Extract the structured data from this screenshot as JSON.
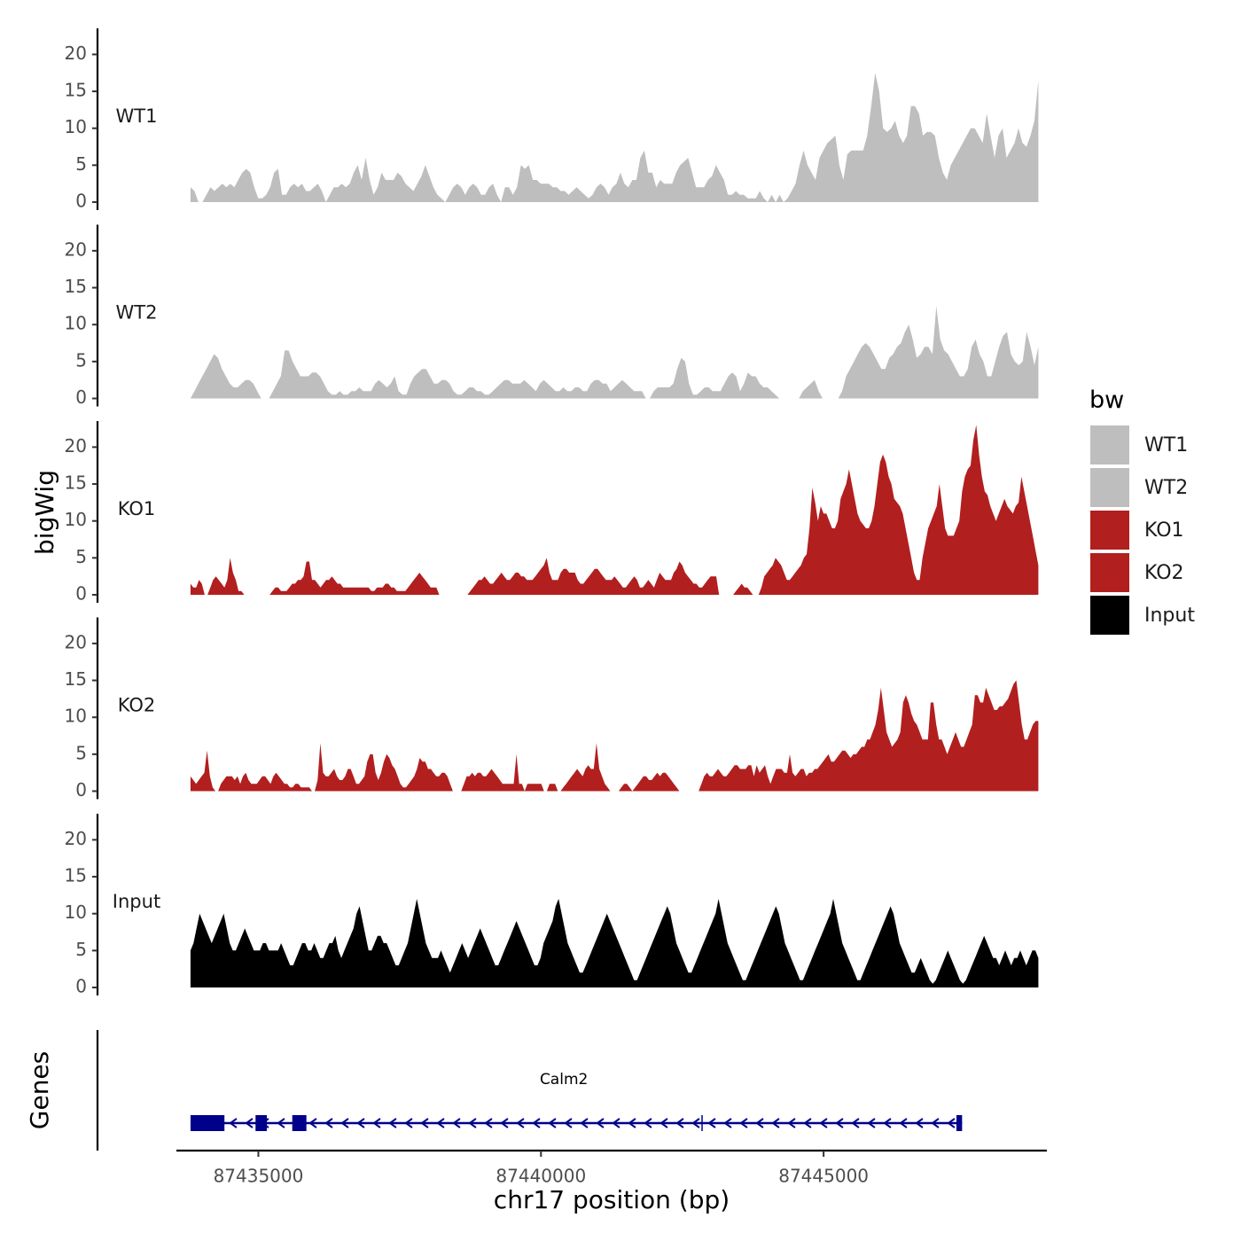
{
  "chart_data": {
    "type": "area",
    "title": "",
    "xlabel": "chr17 position (bp)",
    "ylabel": "bigWig",
    "genes_label": "Genes",
    "xlim": [
      87433550,
      87448950
    ],
    "ylim": [
      0,
      23.5
    ],
    "x_ticks": [
      87435000,
      87440000,
      87445000
    ],
    "x_tick_labels": [
      "87435000",
      "87440000",
      "87445000"
    ],
    "y_ticks": [
      0,
      5,
      10,
      15,
      20
    ],
    "y_tick_labels": [
      "0",
      "5",
      "10",
      "15",
      "20"
    ],
    "x_start": 87433800,
    "x_end": 87448800,
    "legend": {
      "title": "bw",
      "position": "right",
      "entries": [
        {
          "label": "WT1",
          "color": "#bebebe"
        },
        {
          "label": "WT2",
          "color": "#bebebe"
        },
        {
          "label": "KO1",
          "color": "#b21f1f"
        },
        {
          "label": "KO2",
          "color": "#b21f1f"
        },
        {
          "label": "Input",
          "color": "#000000"
        }
      ]
    },
    "series": [
      {
        "name": "WT1",
        "color": "#bebebe",
        "values": [
          2,
          1.5,
          0,
          0,
          1,
          2,
          1.5,
          2,
          2.5,
          2,
          2.5,
          2,
          3,
          4,
          4.5,
          4,
          2,
          0.5,
          0.5,
          1,
          2,
          4,
          4.5,
          1,
          1,
          2,
          2.5,
          2,
          2.5,
          1.5,
          1.5,
          2,
          2.5,
          1.5,
          0,
          1,
          2,
          2,
          2.5,
          2,
          2.5,
          4,
          5,
          3,
          6,
          3,
          1,
          2,
          4,
          3,
          3,
          3,
          4,
          3.5,
          2.5,
          2,
          1.5,
          2.5,
          3.5,
          5,
          3.5,
          2,
          1,
          0.5,
          0,
          1,
          2,
          2.5,
          2,
          1,
          2,
          2.5,
          2,
          1,
          1,
          2,
          2.5,
          1,
          0,
          2,
          2,
          1,
          2,
          5,
          4.5,
          5,
          3,
          3,
          2.5,
          2.5,
          2.5,
          2,
          2,
          1.5,
          1.5,
          1,
          1.5,
          2,
          1.5,
          1,
          0.5,
          1,
          2,
          2.5,
          2,
          1,
          2,
          2.5,
          4,
          2.5,
          2,
          3,
          3,
          6,
          7,
          4,
          4,
          2,
          3,
          2.5,
          2.5,
          2.5,
          4,
          5,
          5.5,
          6,
          4,
          2,
          2,
          2,
          3,
          3.5,
          5,
          4,
          3,
          1,
          1,
          1.5,
          1,
          1,
          0.5,
          0.5,
          0.5,
          1.5,
          0.5,
          0,
          1,
          0,
          1,
          0,
          0.5,
          1.5,
          2.5,
          5,
          7,
          5,
          4,
          3,
          6,
          7,
          8,
          8.5,
          9,
          5,
          3,
          6.5,
          7,
          7,
          7,
          7,
          9,
          13,
          17.5,
          15,
          10,
          9.5,
          10,
          11,
          9,
          8,
          9,
          13,
          13,
          12,
          9,
          9.5,
          9.5,
          9,
          6,
          4,
          3,
          5,
          6,
          7,
          8,
          9,
          10,
          10,
          9,
          8,
          12,
          9,
          6,
          9,
          10,
          6,
          7,
          8,
          10,
          8,
          7.5,
          9,
          11,
          16.5
        ]
      },
      {
        "name": "WT2",
        "color": "#bebebe",
        "values": [
          0,
          1,
          2,
          3,
          4,
          5,
          6,
          5.5,
          4,
          3,
          2,
          1.5,
          1.5,
          2,
          2.5,
          2.5,
          2,
          1,
          0,
          0,
          0,
          1,
          2,
          3,
          6.5,
          6.5,
          5,
          4,
          3,
          3,
          3,
          3.5,
          3.5,
          3,
          2,
          1,
          0.5,
          0.5,
          1,
          0.5,
          0.5,
          1,
          1,
          1.5,
          1,
          1,
          1,
          2,
          2.5,
          2,
          1.5,
          2,
          3,
          1,
          0.5,
          0.5,
          2,
          3,
          3.5,
          4,
          4,
          3,
          2,
          2,
          2.5,
          2.5,
          2,
          1,
          0.5,
          0.5,
          1,
          1.5,
          1.5,
          1,
          1,
          0.5,
          0.5,
          1,
          1.5,
          2,
          2.5,
          2.5,
          2,
          2,
          2,
          2.5,
          2,
          1.5,
          1,
          2,
          2.5,
          2,
          1.5,
          1,
          1,
          1.5,
          1,
          1,
          1.5,
          1.5,
          1,
          1,
          2,
          2.5,
          2.5,
          2,
          2,
          1,
          1.5,
          2,
          2.5,
          2,
          1.5,
          1,
          1,
          1,
          0,
          0,
          1,
          1.5,
          1.5,
          1.5,
          1.5,
          2,
          4,
          5.5,
          5,
          2,
          0.5,
          0.5,
          1,
          1.5,
          1.5,
          1,
          1,
          1,
          2,
          3,
          3.5,
          3,
          1,
          2,
          3.5,
          3,
          3,
          2,
          1.5,
          1.5,
          1,
          0.5,
          0,
          0,
          0,
          0,
          0,
          0,
          1,
          1.5,
          2,
          2.5,
          1,
          0,
          0,
          0,
          0,
          0,
          1,
          3,
          4,
          5,
          6,
          7,
          7.5,
          7,
          6,
          5,
          4,
          4,
          5.5,
          6,
          7,
          7.5,
          9,
          10,
          8,
          5.5,
          6,
          7,
          7,
          6,
          12.5,
          8,
          6.5,
          6,
          5,
          4,
          3,
          3,
          4,
          7,
          8,
          6,
          5,
          3,
          3,
          5,
          7,
          8.5,
          9,
          6,
          5,
          4.5,
          5,
          9,
          7,
          4.5,
          7
        ]
      },
      {
        "name": "KO1",
        "color": "#b21f1f",
        "values": [
          1.5,
          1,
          1,
          2,
          1.5,
          0,
          0,
          1,
          2,
          2.5,
          2,
          1.5,
          1,
          2,
          5,
          3,
          2,
          0.5,
          0.5,
          0,
          0,
          0,
          0,
          0,
          0,
          0,
          0,
          0,
          0,
          0.5,
          1,
          1,
          0.5,
          0.5,
          0.5,
          1,
          1.5,
          1.5,
          2,
          2,
          2.5,
          4.5,
          4.5,
          2,
          2,
          1.5,
          1,
          1.5,
          2,
          2,
          2.5,
          2,
          1.5,
          1.5,
          1,
          1,
          1,
          1,
          1,
          1,
          1,
          1,
          1,
          1,
          0.5,
          0.5,
          1,
          1,
          1,
          1.5,
          1.5,
          1,
          1,
          0.5,
          0.5,
          0.5,
          0.5,
          1,
          1.5,
          2,
          2.5,
          3,
          2.5,
          2,
          1.5,
          1,
          1,
          1,
          0,
          0,
          0,
          0,
          0,
          0,
          0,
          0,
          0,
          0,
          0,
          0.5,
          1,
          1.5,
          2,
          2,
          2.5,
          2,
          1.5,
          1.5,
          2,
          2.5,
          3,
          2.5,
          2,
          2,
          2.5,
          3,
          3,
          2.5,
          2.5,
          2,
          2,
          2,
          2.5,
          3,
          3.5,
          4,
          5,
          3,
          2,
          2,
          2,
          3,
          3.5,
          3.5,
          3,
          3,
          3,
          2,
          1.5,
          1.5,
          2,
          2.5,
          3,
          3.5,
          3.5,
          3,
          2.5,
          2,
          2,
          2,
          2.5,
          2,
          1.5,
          1,
          1,
          1.5,
          2,
          2.5,
          2,
          1,
          1,
          1.5,
          2,
          1.5,
          1,
          2,
          3,
          2.5,
          2,
          2,
          2,
          3,
          3.5,
          4.5,
          4,
          3,
          2.5,
          2,
          1.5,
          1.5,
          1,
          1,
          1.5,
          2,
          2.5,
          2.5,
          2.5,
          0,
          0,
          0,
          0,
          0,
          0,
          0.5,
          1,
          1.5,
          1,
          1,
          0.5,
          0,
          0,
          0,
          1,
          2.5,
          3,
          3.5,
          4,
          5,
          4.5,
          4,
          3,
          2,
          2,
          2.5,
          3,
          3.5,
          4,
          5,
          5.5,
          9,
          14.5,
          12.5,
          10,
          12,
          11,
          11,
          10,
          9,
          9,
          10,
          13,
          14,
          15,
          17,
          15,
          13,
          11,
          10,
          9.5,
          9,
          9,
          10,
          12,
          15,
          18,
          19,
          18,
          16,
          15,
          13,
          12.5,
          12,
          11,
          9,
          7,
          5,
          3,
          2,
          2,
          5,
          7,
          9,
          10,
          11,
          12,
          15,
          12,
          9,
          8,
          8,
          8,
          9,
          10,
          14,
          16,
          17,
          17.5,
          21,
          23,
          19,
          16,
          14,
          13.5,
          12,
          11,
          10,
          11,
          12,
          13,
          12,
          11.5,
          11,
          12,
          12.5,
          16,
          14,
          12,
          10,
          8,
          6,
          4
        ]
      },
      {
        "name": "KO2",
        "color": "#b21f1f",
        "values": [
          2,
          1.5,
          1,
          1.5,
          2,
          2.5,
          5.5,
          2,
          0.5,
          0,
          0,
          1,
          1.5,
          2,
          2,
          2,
          1.5,
          2,
          1,
          2,
          2.5,
          1.5,
          1,
          1,
          1,
          1.5,
          2,
          2,
          1.5,
          1,
          2,
          2.5,
          2,
          1.5,
          1,
          1,
          0.5,
          0.5,
          1,
          1,
          0.5,
          0.5,
          0.5,
          0.5,
          0,
          0,
          1.5,
          6.5,
          2.5,
          2,
          2,
          2.5,
          3,
          2,
          1.5,
          1.5,
          2,
          3,
          3,
          2,
          1,
          1,
          1.5,
          2,
          4,
          5,
          5,
          2.5,
          1.5,
          2.5,
          4,
          5,
          4.5,
          3.5,
          3,
          2,
          1,
          0.5,
          0.5,
          1,
          1.5,
          2,
          3,
          4.5,
          4,
          4,
          3,
          3,
          2.5,
          2,
          2,
          2.5,
          2.5,
          2,
          1,
          0,
          0,
          0,
          0,
          1,
          2,
          2,
          2.5,
          2,
          2.5,
          2.5,
          2,
          2,
          2.5,
          3,
          2.5,
          2,
          1.5,
          1,
          1,
          1,
          1,
          1,
          5,
          1,
          1,
          0,
          1,
          1,
          1,
          1,
          1,
          1,
          0,
          0,
          1,
          1,
          1,
          0,
          0,
          0.5,
          1,
          1.5,
          2,
          2.5,
          3,
          2.5,
          2,
          3,
          3.5,
          3,
          3,
          6.5,
          3,
          2,
          1,
          0.5,
          0,
          0,
          0,
          0,
          0.5,
          1,
          1,
          0.5,
          0,
          0.5,
          1,
          1.5,
          2,
          2,
          1.5,
          1.5,
          2,
          2.5,
          2,
          2.5,
          2.5,
          2,
          1.5,
          1,
          0.5,
          0,
          0,
          0,
          0,
          0,
          0,
          0,
          0,
          1,
          2,
          2.5,
          2,
          2,
          2.5,
          3,
          2.5,
          2,
          2,
          2.5,
          3,
          3.5,
          3.5,
          3,
          3,
          3,
          3.5,
          3.5,
          2,
          3.5,
          2.5,
          3,
          3.5,
          2,
          1,
          2,
          3,
          3,
          3,
          2.5,
          2.5,
          5,
          2.5,
          2,
          2.5,
          3,
          3,
          2,
          2.5,
          2.5,
          3,
          3,
          3.5,
          4,
          4.5,
          5,
          4,
          4,
          4.5,
          5,
          5.5,
          5.5,
          5,
          4.5,
          5,
          5,
          5.5,
          6,
          6,
          7,
          7,
          8,
          9,
          11,
          14,
          11,
          8,
          7,
          6,
          6.5,
          7,
          8,
          12,
          13,
          12,
          10.5,
          9.5,
          9,
          8,
          7,
          7,
          7,
          12,
          12,
          9,
          7,
          7,
          6,
          5,
          6,
          7,
          8,
          7,
          6,
          6,
          7,
          8,
          9,
          13,
          13,
          12,
          12,
          14,
          13,
          12,
          11,
          11,
          11.5,
          11.5,
          12,
          12.5,
          13.5,
          14.5,
          15,
          12,
          9,
          7,
          7,
          8,
          9,
          9.5,
          9.5
        ]
      },
      {
        "name": "Input",
        "color": "#000000",
        "values": [
          5,
          6,
          8,
          10,
          9,
          8,
          7,
          6,
          7,
          8,
          9,
          10,
          8,
          6,
          5,
          5,
          6,
          7,
          8,
          7,
          6,
          5,
          5,
          5,
          6,
          6,
          5,
          5,
          5,
          5,
          6,
          5,
          4,
          3,
          3,
          4,
          5,
          6,
          6,
          5,
          5,
          6,
          5,
          4,
          4,
          5,
          6,
          6,
          7,
          5,
          4,
          5,
          6,
          7,
          8,
          10,
          11,
          9,
          7,
          5,
          5,
          6,
          7,
          7,
          6,
          6,
          5,
          4,
          3,
          3,
          4,
          5,
          6,
          8,
          10,
          12,
          10,
          8,
          6,
          5,
          4,
          4,
          4,
          5,
          4,
          3,
          2,
          3,
          4,
          5,
          6,
          5,
          4,
          5,
          6,
          7,
          8,
          7,
          6,
          5,
          4,
          3,
          3,
          4,
          5,
          6,
          7,
          8,
          9,
          8,
          7,
          6,
          5,
          4,
          3,
          3,
          4,
          6,
          7,
          8,
          9,
          11,
          12,
          10,
          8,
          6,
          5,
          4,
          3,
          2,
          2,
          3,
          4,
          5,
          6,
          7,
          8,
          9,
          10,
          9,
          8,
          7,
          6,
          5,
          4,
          3,
          2,
          1,
          1,
          2,
          3,
          4,
          5,
          6,
          7,
          8,
          9,
          10,
          11,
          10,
          8,
          6,
          5,
          4,
          3,
          2,
          2,
          3,
          4,
          5,
          6,
          7,
          8,
          9,
          10,
          12,
          10,
          8,
          6,
          5,
          4,
          3,
          2,
          1,
          1,
          2,
          3,
          4,
          5,
          6,
          7,
          8,
          9,
          10,
          11,
          10,
          8,
          6,
          5,
          4,
          3,
          2,
          1,
          1,
          2,
          3,
          4,
          5,
          6,
          7,
          8,
          9,
          10,
          12,
          10,
          8,
          6,
          5,
          4,
          3,
          2,
          1,
          1,
          2,
          3,
          4,
          5,
          6,
          7,
          8,
          9,
          10,
          11,
          10,
          8,
          6,
          5,
          4,
          3,
          2,
          2,
          3,
          4,
          3,
          2,
          1,
          0.5,
          1,
          2,
          3,
          4,
          5,
          4,
          3,
          2,
          1,
          0.5,
          1,
          2,
          3,
          4,
          5,
          6,
          7,
          6,
          5,
          4,
          4,
          3,
          4,
          5,
          4,
          3,
          4,
          4,
          5,
          4,
          3,
          4,
          5,
          5,
          4
        ]
      }
    ],
    "genes": [
      {
        "name": "Calm2",
        "strand": "-",
        "start": 87433800,
        "end": 87447450,
        "exons": [
          [
            87433800,
            87434400
          ],
          [
            87434950,
            87435150
          ],
          [
            87435600,
            87435850
          ],
          [
            87447350,
            87447450
          ]
        ]
      }
    ]
  }
}
